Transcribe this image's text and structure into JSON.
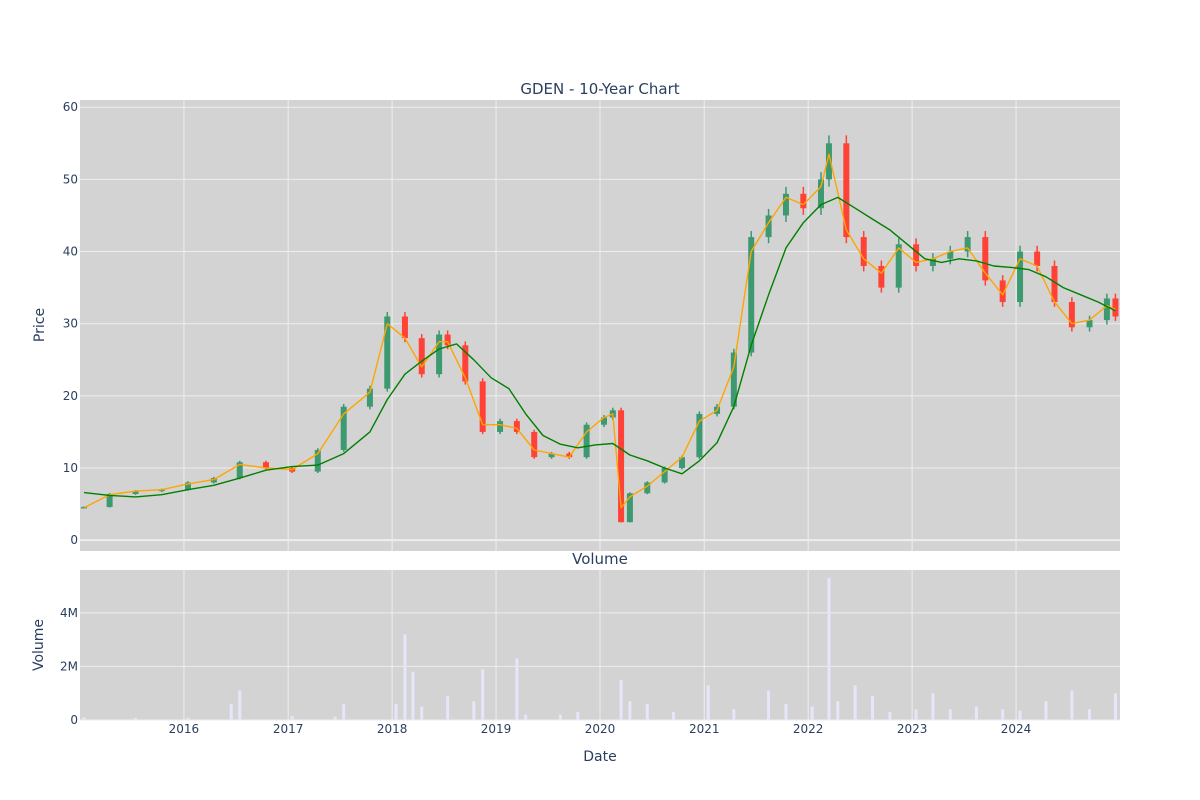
{
  "colors": {
    "plot_bg": "#d3d3d3",
    "grid": "#eeeeee",
    "up": "#3d9970",
    "down": "#ff4136",
    "ma_short": "#ffa500",
    "ma_long": "#008000",
    "volume": "#e6e6fa"
  },
  "chart_data": [
    {
      "type": "candlestick",
      "title": "GDEN - 10-Year Chart",
      "ylabel": "Price",
      "ylim": [
        -1.5,
        61
      ],
      "y_ticks": [
        0,
        10,
        20,
        30,
        40,
        50,
        60
      ],
      "x_tick_labels": [
        "2016",
        "2017",
        "2018",
        "2019",
        "2020",
        "2021",
        "2022",
        "2023",
        "2024"
      ],
      "x_range": [
        "2015-01-01",
        "2024-12-31"
      ],
      "grid": true,
      "series": [
        {
          "x": [
            "2015-01",
            "2015-04",
            "2015-07",
            "2015-10",
            "2016-01",
            "2016-04",
            "2016-07",
            "2016-10",
            "2017-01",
            "2017-04",
            "2017-07",
            "2017-10",
            "2017-12",
            "2018-02",
            "2018-04",
            "2018-06",
            "2018-07",
            "2018-09",
            "2018-11",
            "2019-01",
            "2019-03",
            "2019-05",
            "2019-07",
            "2019-09",
            "2019-11",
            "2020-01",
            "2020-02",
            "2020-03",
            "2020-04",
            "2020-06",
            "2020-08",
            "2020-10",
            "2020-12",
            "2021-02",
            "2021-04",
            "2021-06",
            "2021-08",
            "2021-10",
            "2021-12",
            "2022-02",
            "2022-03",
            "2022-05",
            "2022-07",
            "2022-09",
            "2022-11",
            "2023-01",
            "2023-03",
            "2023-05",
            "2023-07",
            "2023-09",
            "2023-11",
            "2024-01",
            "2024-03",
            "2024-05",
            "2024-07",
            "2024-09",
            "2024-11",
            "2024-12"
          ],
          "close": [
            4.6,
            6.4,
            6.8,
            7.0,
            8.0,
            8.6,
            10.8,
            10.0,
            9.5,
            12.5,
            18.5,
            21.0,
            31.0,
            28.0,
            23.0,
            28.5,
            27.0,
            22.0,
            15.0,
            16.5,
            15.0,
            11.5,
            12.0,
            11.5,
            16.0,
            17.0,
            18.0,
            2.5,
            6.5,
            8.0,
            10.0,
            11.5,
            17.5,
            18.5,
            26.0,
            42.0,
            45.0,
            48.0,
            46.0,
            50.0,
            55.0,
            42.0,
            38.0,
            35.0,
            41.0,
            38.0,
            39.0,
            40.0,
            42.0,
            36.0,
            33.0,
            40.0,
            38.0,
            33.0,
            29.5,
            30.5,
            33.5,
            31.0
          ]
        }
      ]
    },
    {
      "type": "line",
      "series": [
        {
          "name": "",
          "x": [
            "2015-01",
            "2015-04",
            "2015-07",
            "2015-10",
            "2016-01",
            "2016-04",
            "2016-07",
            "2016-10",
            "2017-01",
            "2017-04",
            "2017-07",
            "2017-10",
            "2017-12",
            "2018-02",
            "2018-04",
            "2018-06",
            "2018-07",
            "2018-09",
            "2018-11",
            "2019-01",
            "2019-03",
            "2019-05",
            "2019-07",
            "2019-09",
            "2019-11",
            "2020-01",
            "2020-02",
            "2020-03",
            "2020-04",
            "2020-06",
            "2020-08",
            "2020-10",
            "2020-12",
            "2021-02",
            "2021-04",
            "2021-06",
            "2021-08",
            "2021-10",
            "2021-12",
            "2022-02",
            "2022-03",
            "2022-05",
            "2022-07",
            "2022-09",
            "2022-11",
            "2023-01",
            "2023-03",
            "2023-05",
            "2023-07",
            "2023-09",
            "2023-11",
            "2024-01",
            "2024-03",
            "2024-05",
            "2024-07",
            "2024-09",
            "2024-11",
            "2024-12"
          ],
          "values": [
            4.5,
            6.3,
            6.8,
            7.0,
            7.8,
            8.4,
            10.5,
            10.0,
            9.8,
            12.0,
            17.5,
            20.5,
            30.0,
            28.0,
            24.0,
            27.5,
            27.5,
            22.5,
            16.0,
            16.0,
            15.5,
            12.5,
            12.0,
            11.5,
            15.0,
            17.0,
            17.5,
            4.5,
            6.0,
            7.5,
            9.5,
            11.5,
            16.5,
            18.0,
            24.0,
            40.0,
            44.0,
            47.5,
            46.5,
            49.0,
            53.5,
            43.0,
            39.0,
            37.0,
            40.5,
            38.5,
            39.0,
            40.0,
            40.5,
            37.0,
            34.0,
            39.0,
            38.0,
            33.0,
            30.0,
            30.5,
            32.5,
            32.0
          ]
        },
        {
          "name": "",
          "x": [
            "2015-01",
            "2015-04",
            "2015-07",
            "2015-10",
            "2016-01",
            "2016-04",
            "2016-07",
            "2016-10",
            "2017-01",
            "2017-04",
            "2017-07",
            "2017-10",
            "2017-12",
            "2018-02",
            "2018-04",
            "2018-06",
            "2018-08",
            "2018-10",
            "2018-12",
            "2019-02",
            "2019-04",
            "2019-06",
            "2019-08",
            "2019-10",
            "2019-12",
            "2020-02",
            "2020-04",
            "2020-06",
            "2020-08",
            "2020-10",
            "2020-12",
            "2021-02",
            "2021-04",
            "2021-06",
            "2021-08",
            "2021-10",
            "2021-12",
            "2022-02",
            "2022-04",
            "2022-06",
            "2022-08",
            "2022-10",
            "2022-12",
            "2023-02",
            "2023-04",
            "2023-06",
            "2023-08",
            "2023-10",
            "2023-12",
            "2024-02",
            "2024-04",
            "2024-06",
            "2024-08",
            "2024-10",
            "2024-12"
          ],
          "values": [
            6.6,
            6.2,
            6.0,
            6.3,
            7.0,
            7.6,
            8.6,
            9.7,
            10.2,
            10.4,
            12.0,
            15.0,
            19.5,
            23.0,
            24.8,
            26.5,
            27.2,
            25.0,
            22.5,
            21.0,
            17.5,
            14.5,
            13.3,
            12.8,
            13.2,
            13.4,
            11.8,
            11.0,
            10.0,
            9.2,
            11.0,
            13.5,
            18.5,
            27.0,
            34.0,
            40.5,
            44.0,
            46.5,
            47.5,
            46.0,
            44.5,
            43.0,
            41.0,
            39.0,
            38.5,
            39.0,
            38.7,
            38.0,
            37.8,
            37.5,
            36.5,
            35.0,
            34.0,
            33.0,
            31.8
          ]
        }
      ]
    },
    {
      "type": "bar",
      "title": "Volume",
      "ylabel": "Volume",
      "xlabel": "Date",
      "ylim": [
        0,
        5600000
      ],
      "y_ticks": [
        0,
        2000000,
        4000000
      ],
      "y_tick_labels": [
        "0",
        "2M",
        "4M"
      ],
      "x": [
        "2015-01",
        "2015-07",
        "2016-01",
        "2016-06",
        "2016-07",
        "2017-01",
        "2017-06",
        "2017-07",
        "2018-01",
        "2018-02",
        "2018-03",
        "2018-04",
        "2018-07",
        "2018-10",
        "2018-11",
        "2019-03",
        "2019-04",
        "2019-08",
        "2019-10",
        "2020-03",
        "2020-04",
        "2020-06",
        "2020-09",
        "2021-01",
        "2021-04",
        "2021-08",
        "2021-10",
        "2022-01",
        "2022-03",
        "2022-04",
        "2022-06",
        "2022-08",
        "2022-10",
        "2023-01",
        "2023-03",
        "2023-05",
        "2023-08",
        "2023-11",
        "2024-01",
        "2024-04",
        "2024-07",
        "2024-09",
        "2024-12"
      ],
      "values": [
        100000,
        80000,
        90000,
        600000,
        1100000,
        150000,
        120000,
        600000,
        600000,
        3200000,
        1800000,
        500000,
        900000,
        700000,
        1900000,
        2300000,
        200000,
        200000,
        300000,
        1500000,
        700000,
        600000,
        300000,
        1300000,
        400000,
        1100000,
        600000,
        500000,
        5300000,
        700000,
        1300000,
        900000,
        300000,
        400000,
        1000000,
        400000,
        500000,
        400000,
        350000,
        700000,
        1100000,
        400000,
        1000000
      ]
    }
  ]
}
